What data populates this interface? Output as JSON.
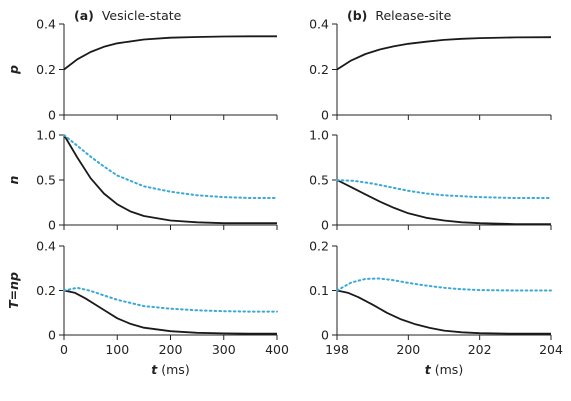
{
  "chart_data": [
    {
      "type": "line",
      "panel": "(a)",
      "title": "Vesicle-state",
      "ylabel": "p",
      "xlim": [
        0,
        400
      ],
      "ylim": [
        0,
        0.4
      ],
      "yticks": [
        "0",
        "0.2",
        "0.4"
      ],
      "series": [
        {
          "style": "solid",
          "color": "#1a1a1a",
          "x": [
            0,
            25,
            50,
            75,
            100,
            150,
            200,
            250,
            300,
            350,
            400
          ],
          "y": [
            0.2,
            0.245,
            0.277,
            0.3,
            0.315,
            0.332,
            0.34,
            0.343,
            0.345,
            0.346,
            0.346
          ]
        }
      ]
    },
    {
      "type": "line",
      "panel": "(b)",
      "title": "Release-site",
      "ylabel": "",
      "xlim": [
        198,
        204
      ],
      "ylim": [
        0,
        0.4
      ],
      "yticks": [
        "0",
        "0.2",
        "0.4"
      ],
      "series": [
        {
          "style": "solid",
          "color": "#1a1a1a",
          "x": [
            198,
            198.4,
            198.8,
            199.2,
            199.6,
            200,
            200.5,
            201,
            201.5,
            202,
            203,
            204
          ],
          "y": [
            0.2,
            0.24,
            0.268,
            0.288,
            0.302,
            0.313,
            0.322,
            0.33,
            0.335,
            0.338,
            0.341,
            0.342
          ]
        }
      ]
    },
    {
      "type": "line",
      "ylabel": "n",
      "xlim": [
        0,
        400
      ],
      "ylim": [
        0,
        1.0
      ],
      "yticks": [
        "0",
        "0.5",
        "1.0"
      ],
      "series": [
        {
          "style": "solid",
          "color": "#1a1a1a",
          "x": [
            0,
            25,
            50,
            75,
            100,
            125,
            150,
            200,
            250,
            300,
            350,
            400
          ],
          "y": [
            1.0,
            0.75,
            0.52,
            0.35,
            0.23,
            0.15,
            0.1,
            0.05,
            0.03,
            0.02,
            0.02,
            0.02
          ]
        },
        {
          "style": "dotted",
          "color": "#3aa9d8",
          "x": [
            0,
            25,
            50,
            75,
            100,
            150,
            200,
            250,
            300,
            350,
            400
          ],
          "y": [
            1.0,
            0.88,
            0.76,
            0.65,
            0.55,
            0.43,
            0.37,
            0.33,
            0.31,
            0.3,
            0.3
          ]
        }
      ]
    },
    {
      "type": "line",
      "ylabel": "",
      "xlim": [
        198,
        204
      ],
      "ylim": [
        0,
        1.0
      ],
      "yticks": [
        "0",
        "0.5",
        "1.0"
      ],
      "series": [
        {
          "style": "solid",
          "color": "#1a1a1a",
          "x": [
            198,
            198.4,
            198.8,
            199.2,
            199.6,
            200,
            200.5,
            201,
            201.5,
            202,
            203,
            204
          ],
          "y": [
            0.5,
            0.42,
            0.34,
            0.26,
            0.19,
            0.13,
            0.08,
            0.05,
            0.03,
            0.02,
            0.01,
            0.01
          ]
        },
        {
          "style": "dotted",
          "color": "#3aa9d8",
          "x": [
            198,
            198.5,
            199,
            199.5,
            200,
            200.5,
            201,
            201.5,
            202,
            203,
            204
          ],
          "y": [
            0.5,
            0.49,
            0.46,
            0.42,
            0.38,
            0.35,
            0.33,
            0.32,
            0.31,
            0.3,
            0.3
          ]
        }
      ]
    },
    {
      "type": "line",
      "ylabel": "T=np",
      "xlabel": "t (ms)",
      "xlim": [
        0,
        400
      ],
      "ylim": [
        0,
        0.4
      ],
      "xticks": [
        "0",
        "100",
        "200",
        "300",
        "400"
      ],
      "yticks": [
        "0",
        "0.2",
        "0.4"
      ],
      "series": [
        {
          "style": "solid",
          "color": "#1a1a1a",
          "x": [
            0,
            20,
            40,
            60,
            80,
            100,
            125,
            150,
            200,
            250,
            300,
            350,
            400
          ],
          "y": [
            0.2,
            0.19,
            0.165,
            0.135,
            0.105,
            0.075,
            0.05,
            0.033,
            0.017,
            0.01,
            0.007,
            0.006,
            0.006
          ]
        },
        {
          "style": "dotted",
          "color": "#3aa9d8",
          "x": [
            0,
            25,
            50,
            75,
            100,
            150,
            200,
            250,
            300,
            350,
            400
          ],
          "y": [
            0.2,
            0.212,
            0.198,
            0.178,
            0.158,
            0.13,
            0.118,
            0.111,
            0.107,
            0.105,
            0.105
          ]
        }
      ]
    },
    {
      "type": "line",
      "ylabel": "",
      "xlabel": "t (ms)",
      "xlim": [
        198,
        204
      ],
      "ylim": [
        0,
        0.2
      ],
      "xticks": [
        "198",
        "200",
        "202",
        "204"
      ],
      "yticks": [
        "0",
        "0.1",
        "0.2"
      ],
      "series": [
        {
          "style": "solid",
          "color": "#1a1a1a",
          "x": [
            198,
            198.3,
            198.6,
            199,
            199.4,
            199.8,
            200.2,
            200.6,
            201,
            201.5,
            202,
            203,
            204
          ],
          "y": [
            0.1,
            0.095,
            0.085,
            0.068,
            0.05,
            0.035,
            0.024,
            0.016,
            0.01,
            0.006,
            0.004,
            0.003,
            0.003
          ]
        },
        {
          "style": "dotted",
          "color": "#3aa9d8",
          "x": [
            198,
            198.4,
            198.8,
            199.2,
            199.6,
            200,
            200.5,
            201,
            201.5,
            202,
            203,
            204
          ],
          "y": [
            0.1,
            0.118,
            0.126,
            0.127,
            0.123,
            0.117,
            0.111,
            0.106,
            0.103,
            0.101,
            0.1,
            0.1
          ]
        }
      ]
    }
  ]
}
